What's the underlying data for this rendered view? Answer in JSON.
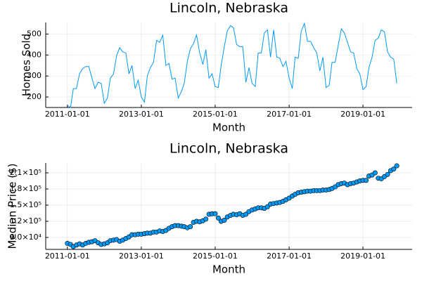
{
  "chart_data": [
    {
      "type": "line",
      "title": "Lincoln, Nebraska",
      "xlabel": "Month",
      "ylabel": "Homes Sold",
      "color": "#009af9",
      "grid": true,
      "x": [
        "2011-01-01",
        "2011-02-01",
        "2011-03-01",
        "2011-04-01",
        "2011-05-01",
        "2011-06-01",
        "2011-07-01",
        "2011-08-01",
        "2011-09-01",
        "2011-10-01",
        "2011-11-01",
        "2011-12-01",
        "2012-01-01",
        "2012-02-01",
        "2012-03-01",
        "2012-04-01",
        "2012-05-01",
        "2012-06-01",
        "2012-07-01",
        "2012-08-01",
        "2012-09-01",
        "2012-10-01",
        "2012-11-01",
        "2012-12-01",
        "2013-01-01",
        "2013-02-01",
        "2013-03-01",
        "2013-04-01",
        "2013-05-01",
        "2013-06-01",
        "2013-07-01",
        "2013-08-01",
        "2013-09-01",
        "2013-10-01",
        "2013-11-01",
        "2013-12-01",
        "2014-01-01",
        "2014-02-01",
        "2014-03-01",
        "2014-04-01",
        "2014-05-01",
        "2014-06-01",
        "2014-07-01",
        "2014-08-01",
        "2014-09-01",
        "2014-10-01",
        "2014-11-01",
        "2014-12-01",
        "2015-01-01",
        "2015-02-01",
        "2015-03-01",
        "2015-04-01",
        "2015-05-01",
        "2015-06-01",
        "2015-07-01",
        "2015-08-01",
        "2015-09-01",
        "2015-10-01",
        "2015-11-01",
        "2015-12-01",
        "2016-01-01",
        "2016-02-01",
        "2016-03-01",
        "2016-04-01",
        "2016-05-01",
        "2016-06-01",
        "2016-07-01",
        "2016-08-01",
        "2016-09-01",
        "2016-10-01",
        "2016-11-01",
        "2016-12-01",
        "2017-01-01",
        "2017-02-01",
        "2017-03-01",
        "2017-04-01",
        "2017-05-01",
        "2017-06-01",
        "2017-07-01",
        "2017-08-01",
        "2017-09-01",
        "2017-10-01",
        "2017-11-01",
        "2017-12-01",
        "2018-01-01",
        "2018-02-01",
        "2018-03-01",
        "2018-04-01",
        "2018-05-01",
        "2018-06-01",
        "2018-07-01",
        "2018-08-01",
        "2018-09-01",
        "2018-10-01",
        "2018-11-01",
        "2018-12-01",
        "2019-01-01",
        "2019-02-01",
        "2019-03-01",
        "2019-04-01",
        "2019-05-01",
        "2019-06-01",
        "2019-07-01",
        "2019-08-01",
        "2019-09-01",
        "2019-10-01",
        "2019-11-01",
        "2019-12-01"
      ],
      "values": [
        160,
        150,
        240,
        240,
        310,
        335,
        345,
        345,
        290,
        240,
        270,
        265,
        170,
        195,
        290,
        310,
        395,
        435,
        415,
        410,
        310,
        350,
        240,
        280,
        200,
        175,
        300,
        340,
        365,
        470,
        460,
        495,
        350,
        360,
        285,
        290,
        195,
        225,
        265,
        370,
        430,
        455,
        495,
        410,
        355,
        425,
        290,
        310,
        250,
        245,
        350,
        440,
        515,
        540,
        530,
        450,
        440,
        440,
        270,
        340,
        265,
        250,
        410,
        410,
        505,
        520,
        390,
        520,
        390,
        385,
        345,
        370,
        290,
        240,
        390,
        385,
        515,
        550,
        465,
        465,
        435,
        410,
        325,
        390,
        245,
        255,
        365,
        365,
        445,
        525,
        505,
        460,
        415,
        410,
        335,
        310,
        235,
        250,
        340,
        390,
        470,
        480,
        520,
        510,
        415,
        390,
        380,
        265
      ],
      "xlim": [
        "2010-06-01",
        "2020-05-01"
      ],
      "xticks": [
        "2011-01-01",
        "2013-01-01",
        "2015-01-01",
        "2017-01-01",
        "2019-01-01"
      ],
      "ylim": [
        150,
        555
      ],
      "yticks": [
        200,
        300,
        400,
        500
      ]
    },
    {
      "type": "scatter",
      "title": "Lincoln, Nebraska",
      "xlabel": "Month",
      "ylabel": "Median Price ($)",
      "color": "#009af9",
      "grid": true,
      "x": [
        "2011-01-01",
        "2011-02-01",
        "2011-03-01",
        "2011-04-01",
        "2011-05-01",
        "2011-06-01",
        "2011-07-01",
        "2011-08-01",
        "2011-09-01",
        "2011-10-01",
        "2011-11-01",
        "2011-12-01",
        "2012-01-01",
        "2012-02-01",
        "2012-03-01",
        "2012-04-01",
        "2012-05-01",
        "2012-06-01",
        "2012-07-01",
        "2012-08-01",
        "2012-09-01",
        "2012-10-01",
        "2012-11-01",
        "2012-12-01",
        "2013-01-01",
        "2013-02-01",
        "2013-03-01",
        "2013-04-01",
        "2013-05-01",
        "2013-06-01",
        "2013-07-01",
        "2013-08-01",
        "2013-09-01",
        "2013-10-01",
        "2013-11-01",
        "2013-12-01",
        "2014-01-01",
        "2014-02-01",
        "2014-03-01",
        "2014-04-01",
        "2014-05-01",
        "2014-06-01",
        "2014-07-01",
        "2014-08-01",
        "2014-09-01",
        "2014-10-01",
        "2014-11-01",
        "2014-12-01",
        "2015-01-01",
        "2015-02-01",
        "2015-03-01",
        "2015-04-01",
        "2015-05-01",
        "2015-06-01",
        "2015-07-01",
        "2015-08-01",
        "2015-09-01",
        "2015-10-01",
        "2015-11-01",
        "2015-12-01",
        "2016-01-01",
        "2016-02-01",
        "2016-03-01",
        "2016-04-01",
        "2016-05-01",
        "2016-06-01",
        "2016-07-01",
        "2016-08-01",
        "2016-09-01",
        "2016-10-01",
        "2016-11-01",
        "2016-12-01",
        "2017-01-01",
        "2017-02-01",
        "2017-03-01",
        "2017-04-01",
        "2017-05-01",
        "2017-06-01",
        "2017-07-01",
        "2017-08-01",
        "2017-09-01",
        "2017-10-01",
        "2017-11-01",
        "2017-12-01",
        "2018-01-01",
        "2018-02-01",
        "2018-03-01",
        "2018-04-01",
        "2018-05-01",
        "2018-06-01",
        "2018-07-01",
        "2018-08-01",
        "2018-09-01",
        "2018-10-01",
        "2018-11-01",
        "2018-12-01",
        "2019-01-01",
        "2019-02-01",
        "2019-03-01",
        "2019-04-01",
        "2019-05-01",
        "2019-06-01",
        "2019-07-01",
        "2019-08-01",
        "2019-09-01",
        "2019-10-01",
        "2019-11-01",
        "2019-12-01"
      ],
      "values": [
        79000,
        77000,
        73000,
        76000,
        78000,
        76000,
        79000,
        81000,
        82000,
        84000,
        80000,
        77000,
        78000,
        80000,
        84000,
        85000,
        86000,
        83000,
        85000,
        88000,
        91000,
        95000,
        95000,
        96000,
        96000,
        97000,
        98000,
        98000,
        100000,
        100000,
        102000,
        101000,
        103000,
        107000,
        110000,
        112000,
        112000,
        111000,
        110000,
        108000,
        110000,
        118000,
        120000,
        119000,
        121000,
        124000,
        133000,
        134000,
        134000,
        126000,
        120000,
        122000,
        128000,
        131000,
        133000,
        132000,
        134000,
        131000,
        133000,
        138000,
        141000,
        143000,
        145000,
        145000,
        144000,
        147000,
        152000,
        153000,
        154000,
        155000,
        157000,
        160000,
        163000,
        167000,
        170000,
        173000,
        174000,
        175000,
        176000,
        176000,
        177000,
        177000,
        177000,
        178000,
        178000,
        179000,
        181000,
        184000,
        188000,
        190000,
        191000,
        188000,
        190000,
        191000,
        193000,
        195000,
        196000,
        196000,
        204000,
        206000,
        210000,
        200000,
        199000,
        203000,
        207000,
        214000,
        217000,
        223000
      ],
      "xlim": [
        "2010-06-01",
        "2020-05-01"
      ],
      "xticks": [
        "2011-01-01",
        "2013-01-01",
        "2015-01-01",
        "2017-01-01",
        "2019-01-01"
      ],
      "ylim": [
        67800,
        228300
      ],
      "yticks": [
        {
          "value": 90000,
          "label": "9.0×10⁴"
        },
        {
          "value": 120000,
          "label": "1.2×10⁵"
        },
        {
          "value": 150000,
          "label": "1.5×10⁵"
        },
        {
          "value": 180000,
          "label": "1.8×10⁵"
        },
        {
          "value": 210000,
          "label": "2.1×10⁵"
        }
      ]
    }
  ]
}
